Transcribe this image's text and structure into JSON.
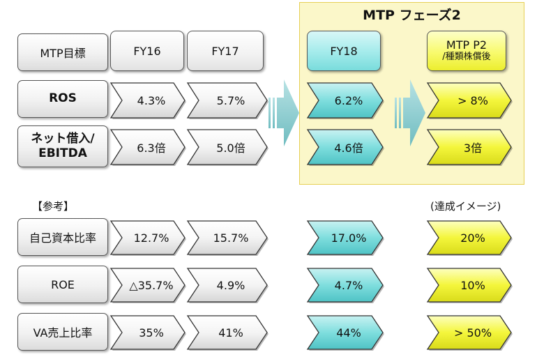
{
  "phase_title": "MTP フェーズ2",
  "header": {
    "label": "MTP目標",
    "fy16": "FY16",
    "fy17": "FY17",
    "fy18": "FY18",
    "mtp_p2": "MTP P2",
    "mtp_p2_sub": "/種類株償後"
  },
  "rows_main": [
    {
      "label_line1": "ROS",
      "label_line2": "",
      "fy16": "4.3%",
      "fy17": "5.7%",
      "fy18": "6.2%",
      "target": "> 8%"
    },
    {
      "label_line1": "ネット借入/",
      "label_line2": "EBITDA",
      "fy16": "6.3倍",
      "fy17": "5.0倍",
      "fy18": "4.6倍",
      "target": "3倍"
    }
  ],
  "reference_label": "【参考】",
  "achievement_label": "(達成イメージ)",
  "rows_ref": [
    {
      "label": "自己資本比率",
      "fy16": "12.7%",
      "fy17": "15.7%",
      "fy18": "17.0%",
      "target": "20%"
    },
    {
      "label": "ROE",
      "fy16": "△35.7%",
      "fy17": "4.9%",
      "fy18": "4.7%",
      "target": "10%"
    },
    {
      "label": "VA売上比率",
      "fy16": "35%",
      "fy17": "41%",
      "fy18": "44%",
      "target": "> 50%"
    }
  ],
  "colors": {
    "white_chevron": "#f4f4f4",
    "cyan": "#7fdede",
    "yellow": "#f4f63c",
    "phase_bg": "#fbf7c9",
    "arrow": "#8fcfd2"
  }
}
